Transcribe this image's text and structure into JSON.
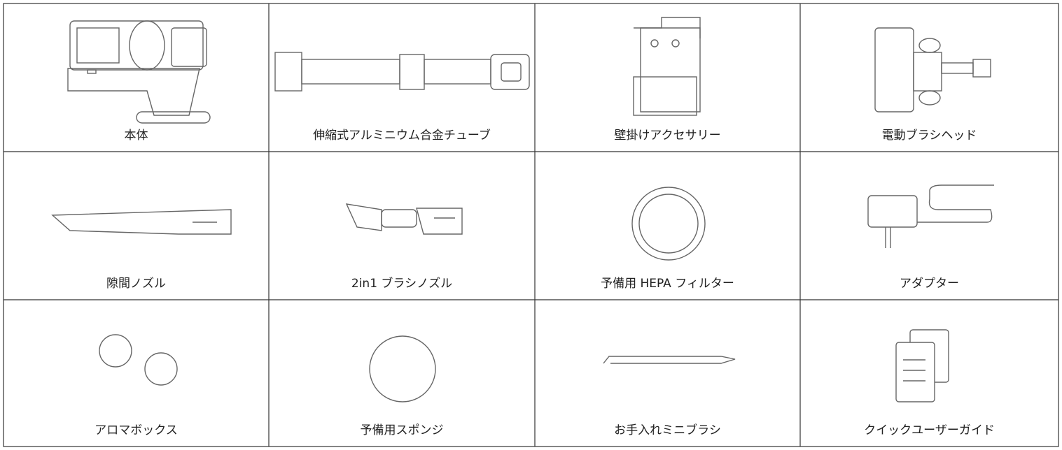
{
  "table": {
    "rows": [
      [
        "本体",
        "伸縮式アルミニウム合金チューブ",
        "壁掛けアクセサリー",
        "電動ブラシヘッド"
      ],
      [
        "隙間ノズル",
        "2in1 ブラシノズル",
        "予備用 HEPA フィルター",
        "アダプター"
      ],
      [
        "アロマボックス",
        "予備用スポンジ",
        "お手入れミニブラシ",
        "クイックユーザーガイド"
      ]
    ]
  }
}
